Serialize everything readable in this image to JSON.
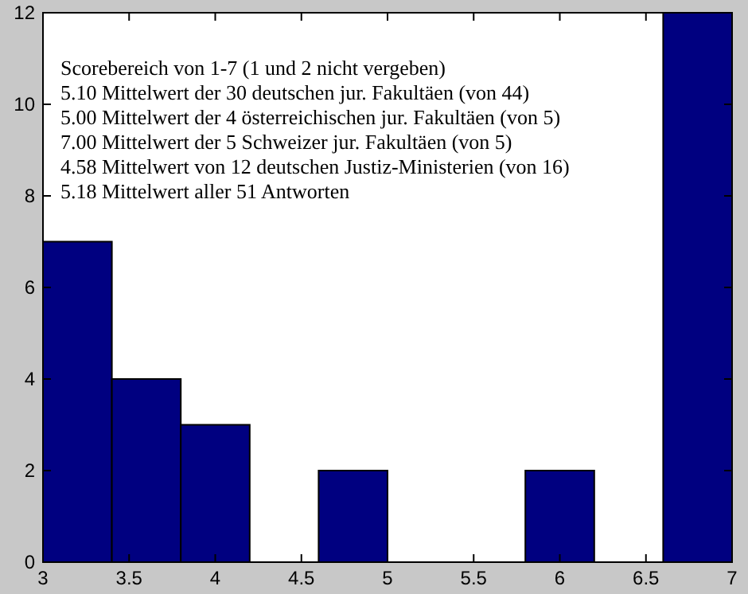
{
  "chart_data": {
    "type": "histogram",
    "bins": [
      3,
      3.4,
      3.8,
      4.2,
      4.6,
      5,
      5.4,
      5.8,
      6.2,
      6.6,
      7
    ],
    "values": [
      7,
      4,
      3,
      0,
      2,
      0,
      0,
      2,
      0,
      12
    ],
    "color": "#000080",
    "xlim": [
      3,
      7
    ],
    "xticks": [
      3,
      3.5,
      4,
      4.5,
      5,
      5.5,
      6,
      6.5,
      7
    ],
    "ylim": [
      0,
      12
    ],
    "yticks": [
      0,
      2,
      4,
      6,
      8,
      10,
      12
    ],
    "grid": false,
    "annotations": [
      "Scorebereich von 1-7 (1 und 2 nicht vergeben)",
      "5.10  Mittelwert der 30 deutschen jur. Fakultäen (von 44)",
      "5.00  Mittelwert der 4 österreichischen jur. Fakultäen (von 5)",
      "7.00  Mittelwert der 5 Schweizer jur. Fakultäen (von 5)",
      "4.58  Mittelwert von 12 deutschen Justiz-Ministerien (von 16)",
      "5.18  Mittelwert aller 51 Antworten"
    ]
  }
}
